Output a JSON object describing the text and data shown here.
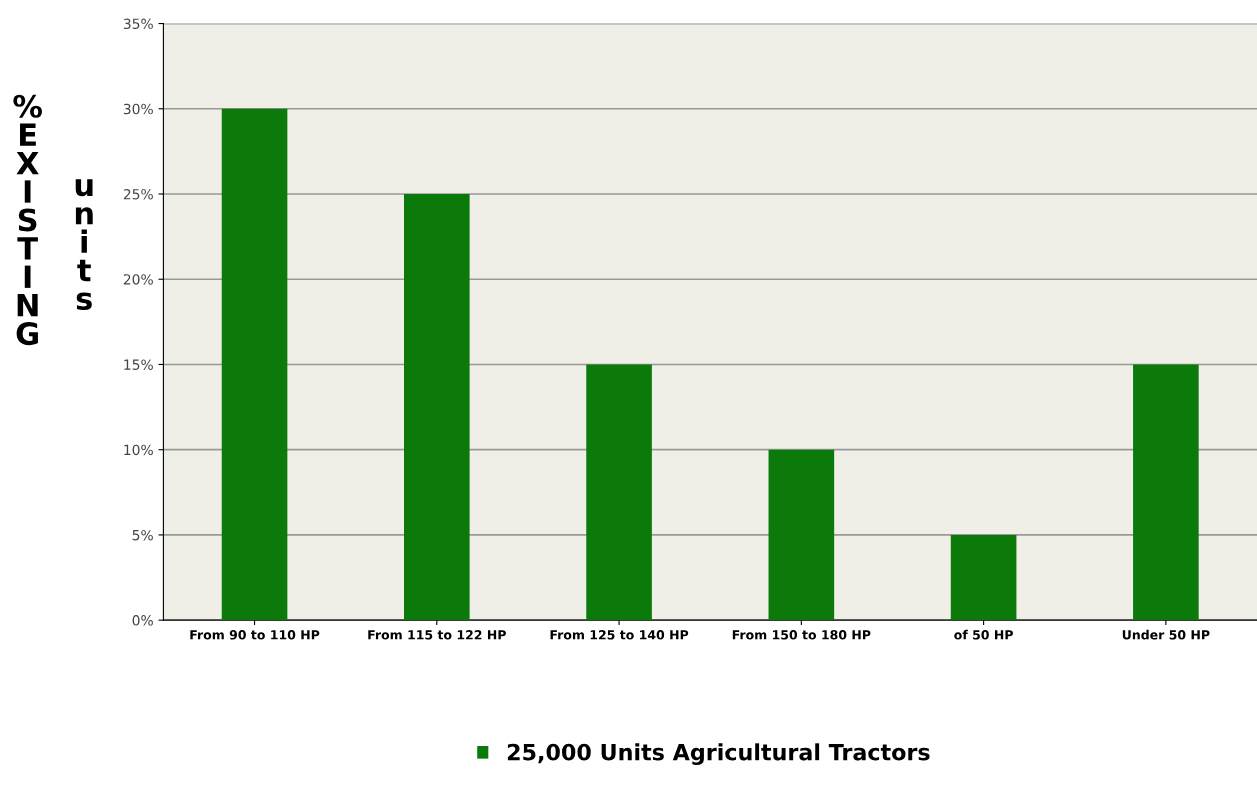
{
  "chart_data": {
    "type": "bar",
    "categories": [
      "From 90 to 110 HP",
      "From 115 to 122 HP",
      "From 125 to 140 HP",
      "From 150 to 180 HP",
      "of 50 HP",
      "Under 50 HP"
    ],
    "series": [
      {
        "name": "25,000 Units Agricultural Tractors",
        "color": "#0b7a0b",
        "values": [
          30,
          25,
          15,
          10,
          5,
          15
        ]
      }
    ],
    "ylabel": "%EXISTING units",
    "ylim": [
      0,
      35
    ],
    "yticks": [
      {
        "value": 0,
        "label": "0%"
      },
      {
        "value": 5,
        "label": "5%"
      },
      {
        "value": 10,
        "label": "10%"
      },
      {
        "value": 15,
        "label": "15%"
      },
      {
        "value": 20,
        "label": "20%"
      },
      {
        "value": 25,
        "label": "25%"
      },
      {
        "value": 30,
        "label": "30%"
      },
      {
        "value": 35,
        "label": "35%"
      }
    ],
    "grid": "y",
    "legend": "bottom"
  }
}
